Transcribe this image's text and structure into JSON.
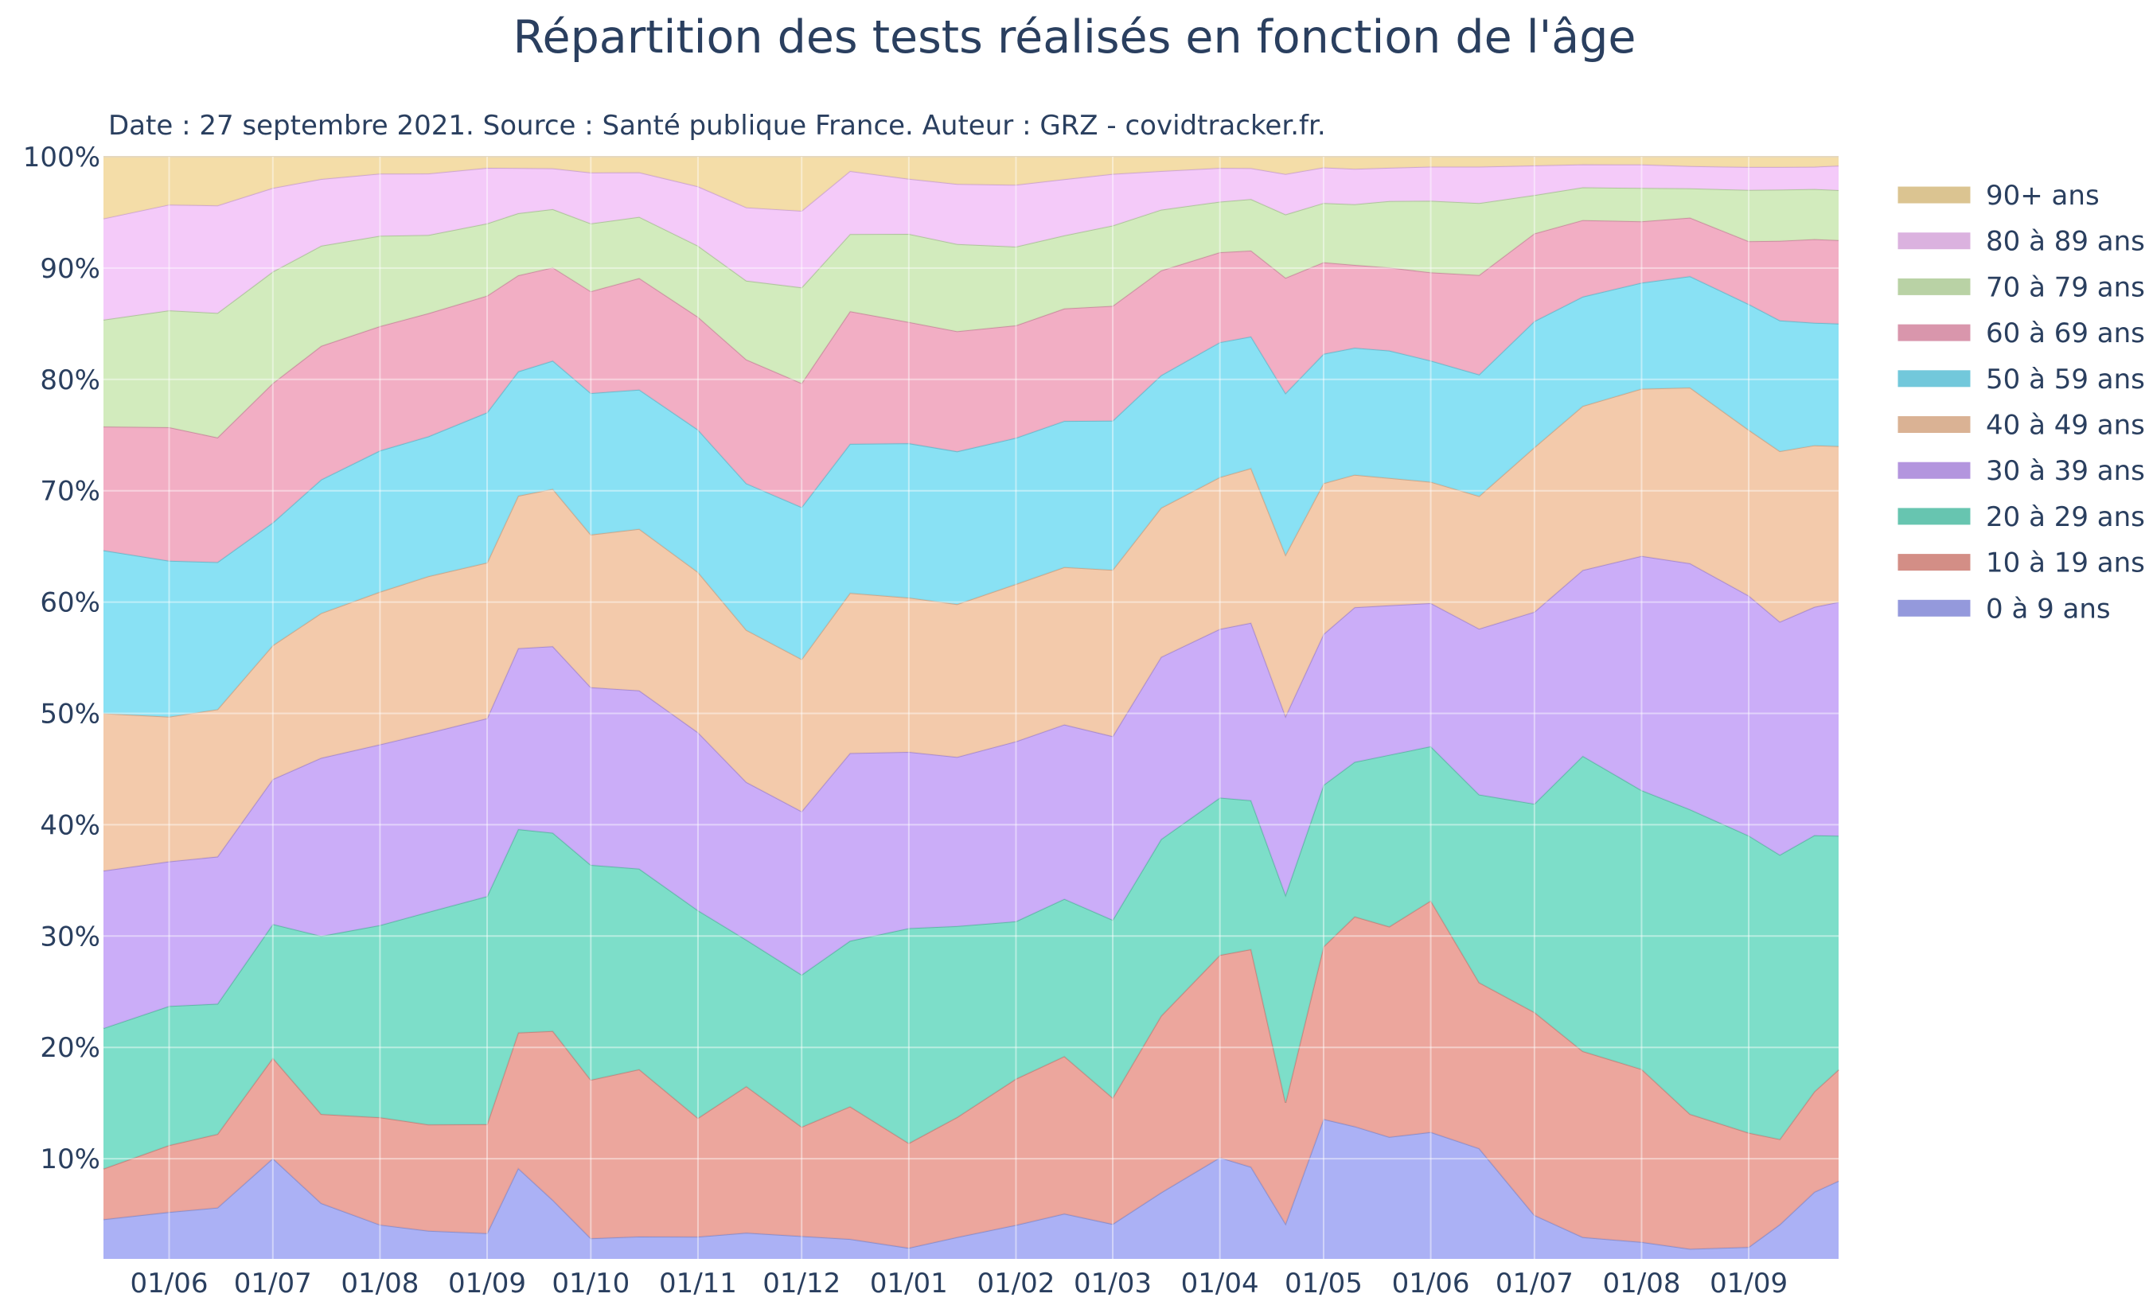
{
  "chart_data": {
    "type": "area",
    "title": "Répartition des tests  réalisés en fonction de l'âge",
    "subtitle": "Date : 27 septembre 2021. Source : Santé publique France. Auteur : GRZ - covidtracker.fr.",
    "xlabel": "",
    "ylabel": "",
    "stacked": true,
    "x": [
      "2020-05-13",
      "2020-06-01",
      "2020-06-15",
      "2020-07-01",
      "2020-07-15",
      "2020-08-01",
      "2020-08-15",
      "2020-09-01",
      "2020-09-10",
      "2020-09-20",
      "2020-10-01",
      "2020-10-15",
      "2020-11-01",
      "2020-11-15",
      "2020-12-01",
      "2020-12-15",
      "2021-01-01",
      "2021-01-15",
      "2021-02-01",
      "2021-02-15",
      "2021-03-01",
      "2021-03-15",
      "2021-04-01",
      "2021-04-10",
      "2021-04-20",
      "2021-05-01",
      "2021-05-10",
      "2021-05-20",
      "2021-06-01",
      "2021-06-15",
      "2021-07-01",
      "2021-07-15",
      "2021-08-01",
      "2021-08-15",
      "2021-09-01",
      "2021-09-10",
      "2021-09-20",
      "2021-09-27"
    ],
    "x_ticks": [
      "01/06",
      "01/07",
      "01/08",
      "01/09",
      "01/10",
      "01/11",
      "01/12",
      "01/01",
      "01/02",
      "01/03",
      "01/04",
      "01/05",
      "01/06",
      "01/07",
      "01/08",
      "01/09"
    ],
    "x_tick_dates": [
      "2020-06-01",
      "2020-07-01",
      "2020-08-01",
      "2020-09-01",
      "2020-10-01",
      "2020-11-01",
      "2020-12-01",
      "2021-01-01",
      "2021-02-01",
      "2021-03-01",
      "2021-04-01",
      "2021-05-01",
      "2021-06-01",
      "2021-07-01",
      "2021-08-01",
      "2021-09-01"
    ],
    "y_ticks": [
      "10%",
      "20%",
      "30%",
      "40%",
      "50%",
      "60%",
      "70%",
      "80%",
      "90%",
      "100%"
    ],
    "ylim": [
      1,
      100
    ],
    "y_unit": "%",
    "grid": true,
    "legend_position": "right",
    "series": [
      {
        "name": "0 à 9 ans",
        "color": "#a4aaf4",
        "values": [
          4.5,
          5.2,
          5.5,
          10,
          6,
          4,
          3.5,
          3.3,
          9,
          6,
          2.8,
          3,
          2.8,
          3.3,
          3,
          2.8,
          2,
          3,
          4,
          5,
          4,
          7,
          10,
          9,
          4,
          14,
          13,
          12,
          12.5,
          11,
          5,
          3,
          2.5,
          1.8,
          2,
          4,
          7,
          8
        ]
      },
      {
        "name": "10 à 19 ans",
        "color": "#ea9e95",
        "values": [
          4.5,
          6,
          6.5,
          9,
          8,
          9.5,
          9.5,
          9.8,
          12,
          14.5,
          14,
          15,
          10,
          13,
          9.7,
          12,
          9.5,
          11,
          13,
          14,
          11,
          16,
          18,
          19,
          10.5,
          16,
          19,
          19,
          21,
          15,
          18.5,
          17,
          15.5,
          11.5,
          10,
          7.5,
          9,
          10
        ]
      },
      {
        "name": "20 à 29 ans",
        "color": "#72dbc4",
        "values": [
          12.5,
          12.5,
          11.5,
          12,
          16,
          17,
          19,
          20.5,
          18,
          17,
          19,
          18,
          17.5,
          13,
          13.5,
          15,
          19.5,
          17.5,
          14,
          14,
          15.5,
          16,
          14,
          13,
          18,
          15,
          14,
          15.5,
          14,
          17,
          19,
          27,
          25,
          26,
          26,
          25,
          23,
          21
        ]
      },
      {
        "name": "30 à 39 ans",
        "color": "#c7a6f7",
        "values": [
          14,
          13,
          13,
          13,
          16,
          16,
          16,
          16,
          16,
          16,
          15.7,
          16,
          15,
          14,
          14.5,
          17,
          16,
          15.5,
          16,
          15.5,
          16,
          16.5,
          15,
          15.5,
          15.5,
          14,
          14,
          13.5,
          13,
          15,
          17.5,
          17,
          21,
          21,
          21,
          20.5,
          20.5,
          21
        ]
      },
      {
        "name": "40 à 49 ans",
        "color": "#f2c6a4",
        "values": [
          14,
          13,
          13,
          12,
          13,
          13.5,
          14,
          14,
          13.5,
          13.5,
          13.5,
          14.5,
          13.5,
          13.5,
          13.5,
          14.5,
          14,
          14,
          14,
          14,
          14.5,
          13.5,
          13.5,
          13.5,
          14,
          14,
          12,
          11.5,
          11,
          12,
          15,
          15,
          15,
          15,
          14.5,
          15,
          14.5,
          14
        ]
      },
      {
        "name": "50 à 59 ans",
        "color": "#7fdef3",
        "values": [
          14.5,
          14,
          13,
          11,
          12,
          12.5,
          12.5,
          13.5,
          11,
          11,
          12.5,
          12.5,
          12,
          13,
          13.5,
          13.5,
          14,
          14,
          13,
          13,
          13,
          12,
          12,
          11.5,
          14,
          12,
          11.5,
          11.5,
          11,
          11,
          11.5,
          10,
          9.5,
          9.5,
          11,
          11.5,
          11,
          11
        ]
      },
      {
        "name": "60 à 69 ans",
        "color": "#f1a7bf",
        "values": [
          11,
          12,
          11,
          12.5,
          12,
          11,
          11,
          10.5,
          8.5,
          8,
          9,
          10,
          9.5,
          11,
          11,
          12,
          11,
          11,
          10,
          10,
          10,
          9.5,
          8,
          7.5,
          10,
          8.5,
          7.5,
          7.5,
          8,
          9,
          8,
          7,
          5.5,
          5,
          5.5,
          7,
          7.5,
          7.5
        ]
      },
      {
        "name": "70 à 79 ans",
        "color": "#cee9b7",
        "values": [
          9.5,
          10.5,
          11,
          10,
          9,
          8,
          7,
          6.5,
          5.5,
          5,
          6,
          5.5,
          6,
          7,
          8.5,
          7,
          8,
          8,
          7,
          6.5,
          7,
          5.5,
          4.5,
          4.5,
          5.5,
          5.5,
          5.5,
          6,
          6.5,
          6.5,
          3.5,
          3,
          3,
          2.5,
          4.5,
          4.5,
          4.5,
          4.5
        ]
      },
      {
        "name": "80 à 89 ans",
        "color": "#f3c6f8",
        "values": [
          9,
          9.5,
          9.5,
          7.5,
          6,
          5.5,
          5.5,
          5,
          4,
          3.5,
          4.5,
          4,
          5,
          6.5,
          6.8,
          5.7,
          5,
          5.5,
          5.5,
          5,
          4.5,
          3.5,
          3,
          2.7,
          3.5,
          3.3,
          3.2,
          3,
          3.1,
          3.3,
          2.7,
          2.1,
          2.1,
          1.9,
          2,
          2,
          2,
          2.2
        ]
      },
      {
        "name": "90+ ans",
        "color": "#f3daa1",
        "values": [
          5.5,
          4.3,
          4.3,
          2.8,
          2,
          1.5,
          1.5,
          1,
          1,
          1,
          1.4,
          1.4,
          2.5,
          4.5,
          4.8,
          1.3,
          2,
          2.5,
          2.5,
          2,
          1.5,
          1.3,
          1,
          1,
          1.5,
          1,
          1.1,
          1,
          0.9,
          0.9,
          0.8,
          0.7,
          0.7,
          0.8,
          0.9,
          0.9,
          0.9,
          0.8
        ]
      }
    ]
  }
}
